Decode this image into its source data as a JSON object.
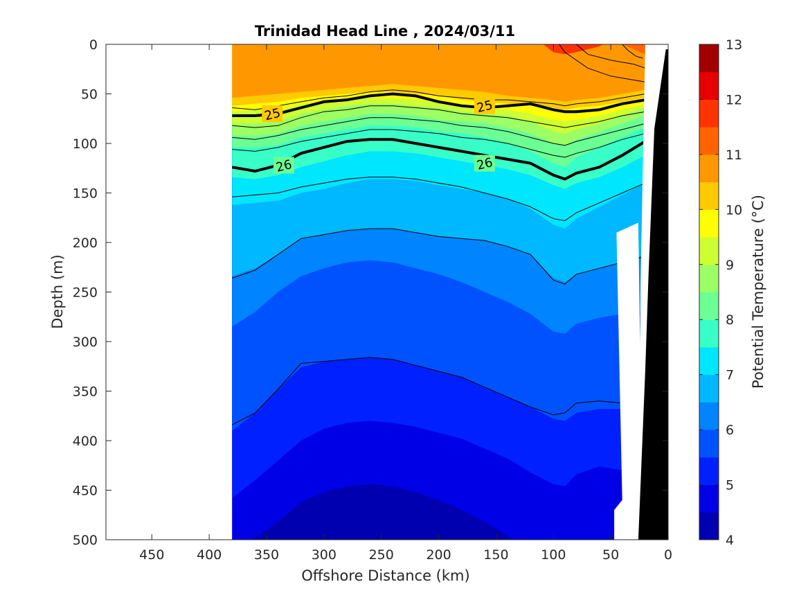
{
  "chart_data": {
    "type": "heatmap",
    "title": "Trinidad Head Line , 2024/03/11",
    "xlabel": "Offshore Distance (km)",
    "ylabel": "Depth (m)",
    "colorbar_label": "Potential Temperature (°C)",
    "xlim": [
      490,
      0
    ],
    "ylim": [
      0,
      500
    ],
    "x_ticks": [
      "450",
      "400",
      "350",
      "300",
      "250",
      "200",
      "150",
      "100",
      "50",
      "0"
    ],
    "y_ticks": [
      "0",
      "50",
      "100",
      "150",
      "200",
      "250",
      "300",
      "350",
      "400",
      "450",
      "500"
    ],
    "colorbar_ticks": [
      "13",
      "12",
      "11",
      "10",
      "9",
      "8",
      "7",
      "6",
      "5",
      "4"
    ],
    "colorbar_range": [
      4,
      13
    ],
    "colorbar_step": 0.5,
    "colormap": [
      "#000080",
      "#0000b0",
      "#0000e6",
      "#0020ff",
      "#0052ff",
      "#0084ff",
      "#00b8ff",
      "#00e6ff",
      "#38ffc8",
      "#6cff94",
      "#9cff64",
      "#ceff32",
      "#ffff00",
      "#ffca00",
      "#ff9800",
      "#ff6400",
      "#ff3200",
      "#e60000",
      "#a00000"
    ],
    "data_extent_km": [
      380,
      20
    ],
    "x_stations_km": [
      380,
      360,
      340,
      320,
      300,
      280,
      260,
      240,
      220,
      200,
      180,
      160,
      140,
      120,
      100,
      90,
      80,
      60,
      40,
      20
    ],
    "isotherm_depths_m": {
      "12": [
        -10,
        -10,
        -10,
        -10,
        -10,
        -10,
        -10,
        -10,
        -10,
        -10,
        -10,
        -10,
        -10,
        -10,
        8,
        10,
        8,
        2,
        -10,
        -10
      ],
      "11.5": [
        -10,
        -10,
        -10,
        -10,
        -10,
        -10,
        -10,
        -10,
        -10,
        -10,
        -10,
        -10,
        -10,
        -10,
        -10,
        -10,
        -10,
        -10,
        0,
        10
      ],
      "11": [
        54,
        52,
        50,
        48,
        46,
        44,
        42,
        40,
        42,
        44,
        46,
        48,
        52,
        54,
        56,
        58,
        56,
        54,
        50,
        46
      ],
      "10.5": [
        62,
        60,
        58,
        54,
        52,
        50,
        48,
        48,
        50,
        52,
        56,
        58,
        60,
        62,
        64,
        66,
        64,
        62,
        58,
        54
      ],
      "10": [
        68,
        66,
        66,
        60,
        58,
        56,
        54,
        54,
        56,
        58,
        62,
        64,
        66,
        70,
        76,
        78,
        76,
        72,
        66,
        60
      ],
      "9.5": [
        80,
        80,
        78,
        70,
        66,
        62,
        60,
        60,
        62,
        64,
        68,
        70,
        72,
        78,
        88,
        90,
        86,
        80,
        72,
        64
      ],
      "9": [
        92,
        92,
        90,
        82,
        78,
        74,
        70,
        70,
        72,
        76,
        78,
        80,
        84,
        90,
        100,
        102,
        96,
        88,
        80,
        72
      ],
      "8.5": [
        104,
        104,
        102,
        94,
        90,
        86,
        82,
        82,
        84,
        88,
        90,
        94,
        100,
        108,
        120,
        124,
        114,
        104,
        94,
        84
      ],
      "8": [
        134,
        136,
        132,
        124,
        118,
        112,
        108,
        108,
        110,
        114,
        118,
        122,
        126,
        132,
        142,
        146,
        140,
        134,
        124,
        112
      ],
      "7.5": [
        162,
        160,
        158,
        150,
        146,
        140,
        136,
        136,
        138,
        142,
        146,
        150,
        156,
        166,
        182,
        186,
        176,
        164,
        152,
        140
      ],
      "7": [
        234,
        226,
        212,
        196,
        192,
        188,
        186,
        186,
        190,
        194,
        196,
        198,
        204,
        212,
        236,
        240,
        232,
        226,
        220,
        212
      ],
      "6.5": [
        285,
        270,
        250,
        234,
        226,
        220,
        218,
        220,
        226,
        232,
        240,
        250,
        260,
        272,
        290,
        292,
        282,
        276,
        272,
        268
      ],
      "6": [
        390,
        372,
        348,
        326,
        320,
        318,
        316,
        318,
        324,
        330,
        336,
        346,
        356,
        366,
        378,
        380,
        372,
        368,
        368,
        368
      ],
      "5.5": [
        458,
        440,
        420,
        400,
        388,
        382,
        380,
        382,
        386,
        392,
        398,
        408,
        418,
        432,
        444,
        446,
        434,
        426,
        430,
        440
      ],
      "5": [
        510,
        498,
        482,
        462,
        452,
        446,
        444,
        446,
        452,
        460,
        470,
        482,
        496,
        510,
        520,
        520,
        512,
        506,
        510,
        520
      ]
    },
    "density_contours": {
      "25": [
        72,
        72,
        70,
        64,
        58,
        56,
        52,
        50,
        52,
        58,
        62,
        64,
        62,
        60,
        66,
        68,
        68,
        66,
        60,
        56
      ],
      "26": [
        124,
        128,
        122,
        110,
        104,
        98,
        96,
        96,
        100,
        104,
        108,
        112,
        116,
        120,
        132,
        136,
        130,
        124,
        112,
        98
      ]
    },
    "density_labels": [
      {
        "text": "25",
        "x_km": 345,
        "y_m": 70
      },
      {
        "text": "25",
        "x_km": 160,
        "y_m": 62
      },
      {
        "text": "26",
        "x_km": 335,
        "y_m": 122
      },
      {
        "text": "26",
        "x_km": 160,
        "y_m": 120
      }
    ],
    "thin_contours": [
      [
        64,
        66,
        62,
        58,
        54,
        52,
        48,
        46,
        48,
        52,
        54,
        56,
        56,
        58,
        60,
        62,
        60,
        58,
        54,
        50
      ],
      [
        82,
        84,
        82,
        74,
        68,
        66,
        62,
        62,
        64,
        66,
        70,
        72,
        74,
        78,
        82,
        84,
        82,
        78,
        72,
        68
      ],
      [
        94,
        96,
        92,
        86,
        82,
        78,
        74,
        74,
        76,
        78,
        82,
        84,
        88,
        94,
        100,
        102,
        98,
        92,
        86,
        80
      ],
      [
        106,
        108,
        104,
        98,
        94,
        90,
        86,
        86,
        88,
        90,
        94,
        96,
        100,
        106,
        112,
        114,
        110,
        104,
        96,
        90
      ],
      [
        154,
        152,
        150,
        144,
        140,
        136,
        134,
        134,
        136,
        140,
        144,
        150,
        156,
        164,
        176,
        178,
        170,
        160,
        150,
        140
      ],
      [
        236,
        228,
        212,
        196,
        192,
        188,
        186,
        186,
        190,
        194,
        196,
        198,
        204,
        212,
        238,
        242,
        232,
        226,
        220,
        214
      ],
      [
        384,
        372,
        348,
        322,
        320,
        318,
        316,
        318,
        324,
        330,
        336,
        346,
        356,
        366,
        374,
        372,
        362,
        360,
        362,
        364
      ]
    ],
    "top_contour_fragments": [
      [
        [
          95,
          0
        ],
        [
          90,
          8
        ],
        [
          70,
          24
        ],
        [
          50,
          32
        ],
        [
          30,
          36
        ],
        [
          20,
          38
        ]
      ],
      [
        [
          80,
          0
        ],
        [
          70,
          10
        ],
        [
          50,
          16
        ],
        [
          30,
          20
        ],
        [
          20,
          24
        ]
      ],
      [
        [
          40,
          0
        ],
        [
          35,
          6
        ],
        [
          28,
          12
        ],
        [
          22,
          14
        ]
      ]
    ],
    "seafloor_outline_km_m": [
      [
        20,
        0
      ],
      [
        19,
        85
      ],
      [
        18,
        240
      ],
      [
        17,
        330
      ],
      [
        24,
        340
      ],
      [
        26,
        500
      ],
      [
        40,
        500
      ],
      [
        40,
        470
      ],
      [
        45,
        465
      ],
      [
        45,
        190
      ]
    ]
  }
}
